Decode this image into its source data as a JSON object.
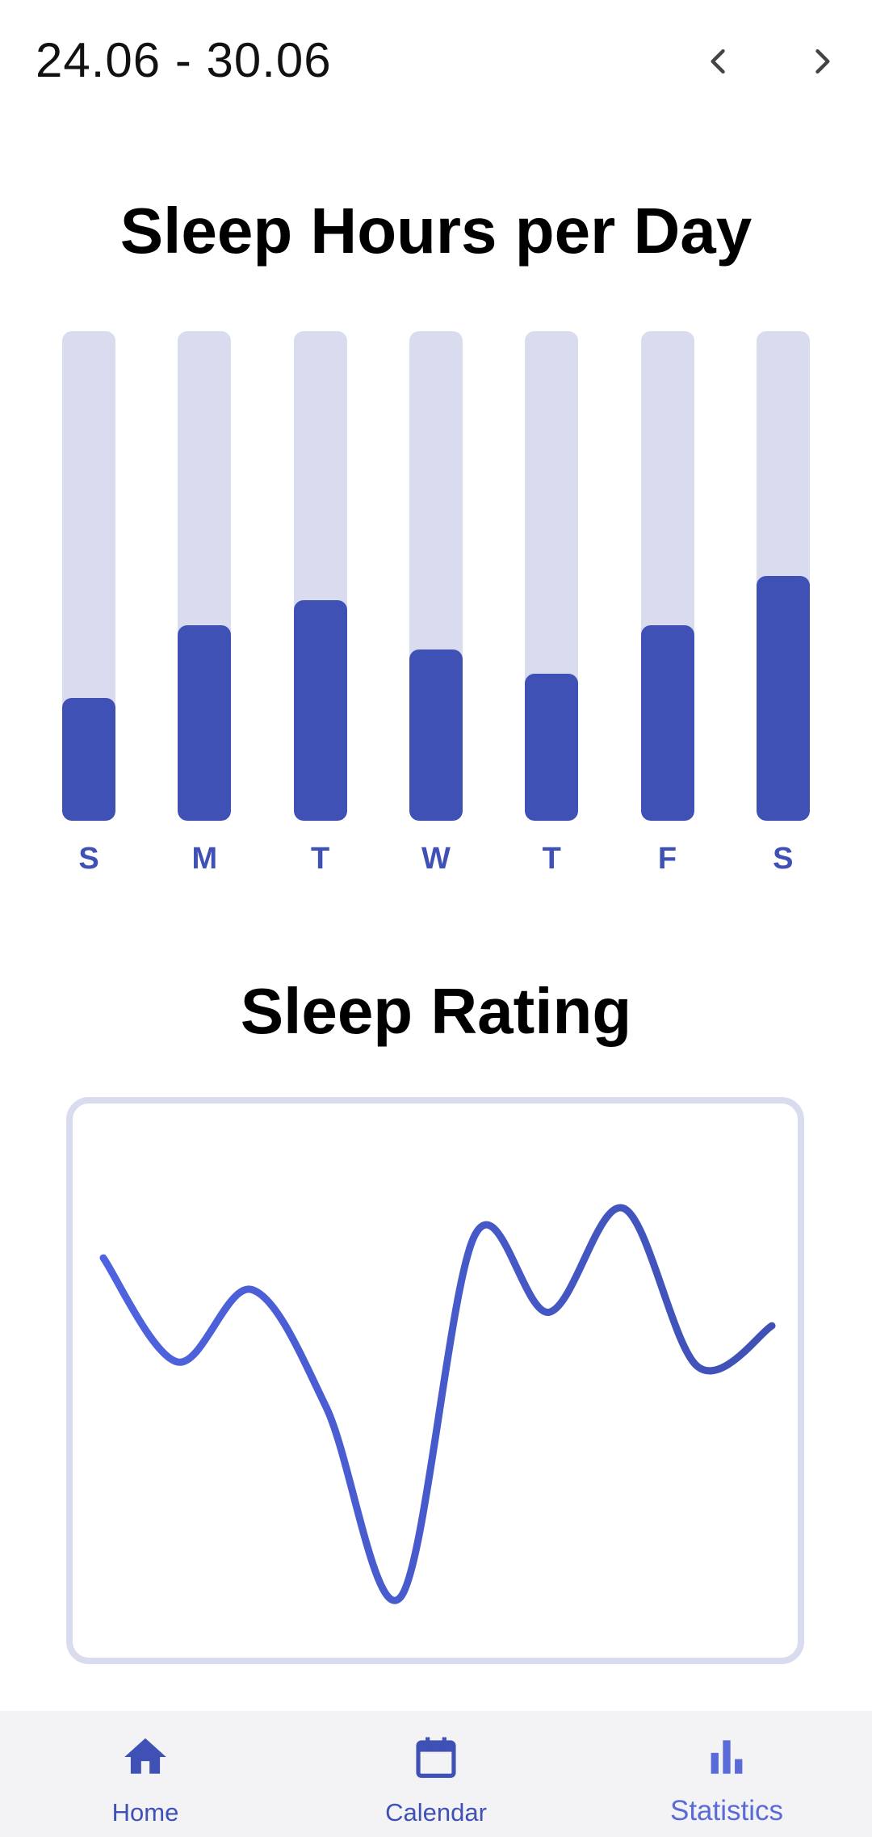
{
  "header": {
    "date_range": "24.06 - 30.06",
    "prev_icon": "chevron-left-icon",
    "next_icon": "chevron-right-icon"
  },
  "sleep_hours": {
    "title": "Sleep Hours per Day"
  },
  "sleep_rating": {
    "title": "Sleep Rating"
  },
  "chart_data": [
    {
      "type": "bar",
      "title": "Sleep Hours per Day",
      "categories": [
        "S",
        "M",
        "T",
        "W",
        "T",
        "F",
        "S"
      ],
      "values": [
        0.25,
        0.4,
        0.45,
        0.35,
        0.3,
        0.4,
        0.5
      ],
      "ylim": [
        0,
        1
      ],
      "grid": false,
      "colors": {
        "fill": "#3f51b5",
        "track": "#d9dbef"
      }
    },
    {
      "type": "line",
      "title": "Sleep Rating",
      "x": [
        0,
        1,
        2,
        3,
        4,
        5,
        6,
        7,
        8,
        9
      ],
      "values": [
        0.78,
        0.55,
        0.71,
        0.45,
        0.03,
        0.83,
        0.66,
        0.89,
        0.54,
        0.63
      ],
      "ylim": [
        0,
        1
      ],
      "grid": false,
      "colors": {
        "line_start": "#4f63e0",
        "line_end": "#3f51b5",
        "border": "#d9dbef"
      }
    }
  ],
  "bottom_nav": {
    "items": [
      {
        "label": "Home",
        "icon": "home-icon"
      },
      {
        "label": "Calendar",
        "icon": "calendar-icon"
      },
      {
        "label": "Statistics",
        "icon": "bar-chart-icon",
        "active": true
      }
    ]
  }
}
